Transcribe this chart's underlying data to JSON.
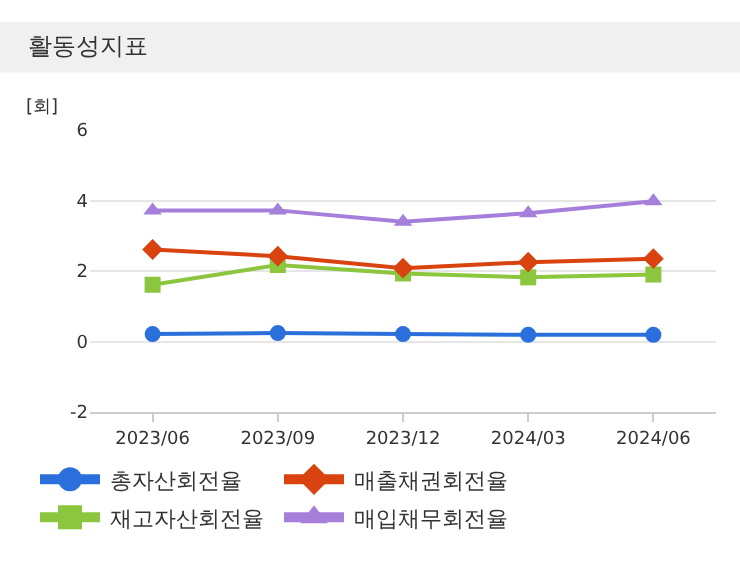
{
  "chart_data": {
    "type": "line",
    "title": "활동성지표",
    "ylabel": "[회]",
    "categories": [
      "2023/06",
      "2023/09",
      "2023/12",
      "2024/03",
      "2024/06"
    ],
    "series": [
      {
        "name": "총자산회전율",
        "color": "#2a6fdb",
        "marker": "circle",
        "values": [
          0.21,
          0.24,
          0.21,
          0.19,
          0.19
        ]
      },
      {
        "name": "매출채권회전율",
        "color": "#d9430f",
        "marker": "diamond",
        "values": [
          2.61,
          2.42,
          2.08,
          2.25,
          2.35
        ]
      },
      {
        "name": "재고자산회전율",
        "color": "#8cc63f",
        "marker": "square",
        "values": [
          1.61,
          2.17,
          1.93,
          1.82,
          1.9
        ]
      },
      {
        "name": "매입채무회전율",
        "color": "#a57fd9",
        "marker": "triangle",
        "values": [
          3.72,
          3.72,
          3.4,
          3.64,
          3.98
        ]
      }
    ],
    "ylim": [
      -2,
      6
    ],
    "yticks": [
      -2,
      0,
      2,
      4,
      6
    ],
    "grid": "y",
    "legend": "bottom",
    "line_style": "solid"
  }
}
